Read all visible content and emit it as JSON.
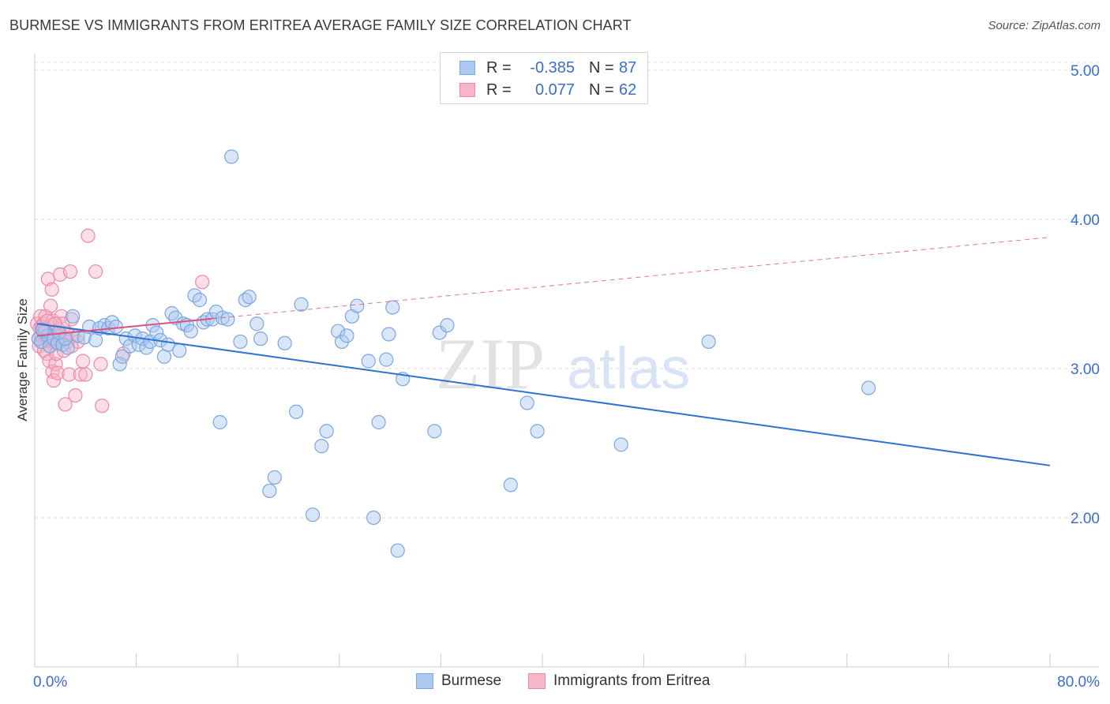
{
  "title": "BURMESE VS IMMIGRANTS FROM ERITREA AVERAGE FAMILY SIZE CORRELATION CHART",
  "source": "Source: ZipAtlas.com",
  "watermark": {
    "zip": "ZIP",
    "atlas": "atlas"
  },
  "colors": {
    "blue_fill": "#aac8f0",
    "blue_stroke": "#7aa6e0",
    "blue_line": "#2f72d0",
    "pink_fill": "#f7b6c8",
    "pink_stroke": "#ee88a8",
    "pink_line": "#e0507e",
    "grid": "#dddddd",
    "tick_text": "#3a6fc4"
  },
  "legend": {
    "rows": [
      {
        "r_label": "R =",
        "r_value": "-0.385",
        "n_label": "N =",
        "n_value": "87"
      },
      {
        "r_label": "R =",
        "r_value": "0.077",
        "n_label": "N =",
        "n_value": "62"
      }
    ]
  },
  "bottom_legend": [
    "Burmese",
    "Immigrants from Eritrea"
  ],
  "chart_data": {
    "type": "scatter",
    "title": "BURMESE VS IMMIGRANTS FROM ERITREA AVERAGE FAMILY SIZE CORRELATION CHART",
    "xlabel": "",
    "ylabel": "Average Family Size",
    "xlim": [
      0,
      80
    ],
    "ylim": [
      1.0,
      5.1
    ],
    "x_tick_labels": [
      "0.0%",
      "80.0%"
    ],
    "y_ticks": [
      2.0,
      3.0,
      4.0,
      5.0
    ],
    "y_tick_labels": [
      "2.00",
      "3.00",
      "4.00",
      "5.00"
    ],
    "series": [
      {
        "name": "Burmese",
        "r": -0.385,
        "n": 87,
        "trend": {
          "x0": 0.2,
          "y0": 3.3,
          "x1": 80,
          "y1": 2.35,
          "dashed_extension": false
        },
        "points": [
          [
            0.3,
            3.2
          ],
          [
            0.5,
            3.18
          ],
          [
            0.8,
            3.25
          ],
          [
            1.0,
            3.22
          ],
          [
            1.2,
            3.15
          ],
          [
            1.5,
            3.2
          ],
          [
            1.8,
            3.17
          ],
          [
            2.2,
            3.16
          ],
          [
            2.6,
            3.14
          ],
          [
            3.0,
            3.35
          ],
          [
            3.4,
            3.22
          ],
          [
            3.9,
            3.21
          ],
          [
            4.3,
            3.28
          ],
          [
            4.8,
            3.19
          ],
          [
            5.1,
            3.27
          ],
          [
            5.5,
            3.29
          ],
          [
            5.8,
            3.27
          ],
          [
            6.1,
            3.31
          ],
          [
            6.4,
            3.28
          ],
          [
            6.7,
            3.03
          ],
          [
            6.9,
            3.08
          ],
          [
            7.2,
            3.2
          ],
          [
            7.5,
            3.15
          ],
          [
            7.9,
            3.22
          ],
          [
            8.2,
            3.16
          ],
          [
            8.5,
            3.2
          ],
          [
            8.8,
            3.14
          ],
          [
            9.1,
            3.18
          ],
          [
            9.3,
            3.29
          ],
          [
            9.6,
            3.24
          ],
          [
            9.9,
            3.19
          ],
          [
            10.2,
            3.08
          ],
          [
            10.5,
            3.16
          ],
          [
            10.8,
            3.37
          ],
          [
            11.1,
            3.34
          ],
          [
            11.4,
            3.12
          ],
          [
            11.7,
            3.3
          ],
          [
            12.0,
            3.29
          ],
          [
            12.3,
            3.25
          ],
          [
            12.6,
            3.49
          ],
          [
            13.0,
            3.46
          ],
          [
            13.3,
            3.31
          ],
          [
            13.6,
            3.33
          ],
          [
            14.0,
            3.33
          ],
          [
            14.3,
            3.38
          ],
          [
            14.8,
            3.34
          ],
          [
            15.2,
            3.33
          ],
          [
            15.5,
            4.42
          ],
          [
            16.2,
            3.18
          ],
          [
            16.6,
            3.46
          ],
          [
            16.9,
            3.48
          ],
          [
            17.5,
            3.3
          ],
          [
            17.8,
            3.2
          ],
          [
            18.5,
            2.18
          ],
          [
            18.9,
            2.27
          ],
          [
            19.7,
            3.17
          ],
          [
            20.6,
            2.71
          ],
          [
            21.0,
            3.43
          ],
          [
            21.9,
            2.02
          ],
          [
            22.6,
            2.48
          ],
          [
            23.0,
            2.58
          ],
          [
            23.9,
            3.25
          ],
          [
            24.2,
            3.18
          ],
          [
            24.6,
            3.22
          ],
          [
            25.0,
            3.35
          ],
          [
            25.4,
            3.42
          ],
          [
            26.3,
            3.05
          ],
          [
            26.7,
            2.0
          ],
          [
            27.1,
            2.64
          ],
          [
            27.7,
            3.06
          ],
          [
            27.9,
            3.23
          ],
          [
            28.2,
            3.41
          ],
          [
            28.6,
            1.78
          ],
          [
            29.0,
            2.93
          ],
          [
            31.5,
            2.58
          ],
          [
            31.9,
            3.24
          ],
          [
            32.5,
            3.29
          ],
          [
            37.5,
            2.22
          ],
          [
            38.8,
            2.77
          ],
          [
            39.6,
            2.58
          ],
          [
            46.2,
            2.49
          ],
          [
            53.1,
            3.18
          ],
          [
            65.7,
            2.87
          ],
          [
            0.6,
            3.26
          ],
          [
            1.9,
            3.24
          ],
          [
            2.4,
            3.2
          ],
          [
            14.6,
            2.64
          ]
        ]
      },
      {
        "name": "Immigrants from Eritrea",
        "r": 0.077,
        "n": 62,
        "trend": {
          "x0": 0.2,
          "y0": 3.22,
          "x1": 80,
          "y1": 3.88,
          "solid_until_x": 14
        },
        "points": [
          [
            0.2,
            3.3
          ],
          [
            0.3,
            3.2
          ],
          [
            0.35,
            3.15
          ],
          [
            0.4,
            3.27
          ],
          [
            0.45,
            3.35
          ],
          [
            0.5,
            3.22
          ],
          [
            0.55,
            3.28
          ],
          [
            0.6,
            3.18
          ],
          [
            0.65,
            3.25
          ],
          [
            0.7,
            3.3
          ],
          [
            0.75,
            3.12
          ],
          [
            0.8,
            3.22
          ],
          [
            0.85,
            3.35
          ],
          [
            0.9,
            3.26
          ],
          [
            0.95,
            3.1
          ],
          [
            1.0,
            3.2
          ],
          [
            1.05,
            3.6
          ],
          [
            1.1,
            3.28
          ],
          [
            1.15,
            3.05
          ],
          [
            1.2,
            3.15
          ],
          [
            1.25,
            3.42
          ],
          [
            1.3,
            3.22
          ],
          [
            1.35,
            3.53
          ],
          [
            1.4,
            2.98
          ],
          [
            1.45,
            3.32
          ],
          [
            1.5,
            2.92
          ],
          [
            1.55,
            3.25
          ],
          [
            1.6,
            3.18
          ],
          [
            1.65,
            3.03
          ],
          [
            1.7,
            3.1
          ],
          [
            1.75,
            3.22
          ],
          [
            1.8,
            2.97
          ],
          [
            1.85,
            3.17
          ],
          [
            1.9,
            3.26
          ],
          [
            2.0,
            3.63
          ],
          [
            2.1,
            3.35
          ],
          [
            2.2,
            3.2
          ],
          [
            2.3,
            3.12
          ],
          [
            2.4,
            2.76
          ],
          [
            2.5,
            3.24
          ],
          [
            2.6,
            3.18
          ],
          [
            2.7,
            2.96
          ],
          [
            2.8,
            3.65
          ],
          [
            2.9,
            3.33
          ],
          [
            3.0,
            3.22
          ],
          [
            3.2,
            2.82
          ],
          [
            3.4,
            3.18
          ],
          [
            3.6,
            2.96
          ],
          [
            3.8,
            3.05
          ],
          [
            4.2,
            3.89
          ],
          [
            4.8,
            3.65
          ],
          [
            5.2,
            3.03
          ],
          [
            5.3,
            2.75
          ],
          [
            7.0,
            3.1
          ],
          [
            13.2,
            3.58
          ],
          [
            2.2,
            3.3
          ],
          [
            1.0,
            3.32
          ],
          [
            0.7,
            3.24
          ],
          [
            1.2,
            3.2
          ],
          [
            1.6,
            3.3
          ],
          [
            4.0,
            2.96
          ],
          [
            2.9,
            3.15
          ]
        ]
      }
    ]
  }
}
